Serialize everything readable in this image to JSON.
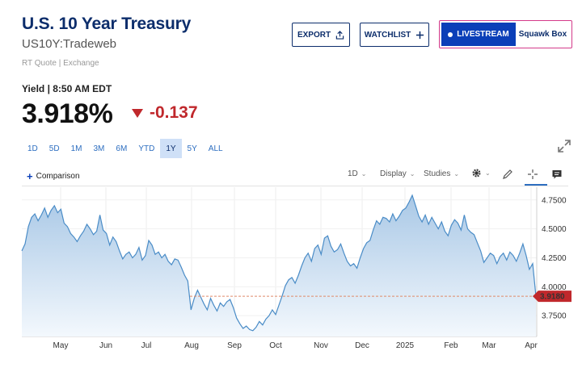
{
  "header": {
    "title": "U.S. 10 Year Treasury",
    "symbol": "US10Y:Tradeweb",
    "quote_source": "RT Quote | Exchange"
  },
  "actions": {
    "export_label": "EXPORT",
    "watchlist_label": "WATCHLIST",
    "livestream_label": "LIVESTREAM",
    "squawk_label": "Squawk Box"
  },
  "quote": {
    "yield_label": "Yield | 8:50 AM EDT",
    "price": "3.918%",
    "change": "-0.137"
  },
  "ranges": {
    "items": [
      "1D",
      "5D",
      "1M",
      "3M",
      "6M",
      "YTD",
      "1Y",
      "5Y",
      "ALL"
    ],
    "active": "1Y"
  },
  "toolbar": {
    "comparison_label": "Comparison",
    "interval_label": "1D",
    "display_label": "Display",
    "studies_label": "Studies"
  },
  "colors": {
    "line": "#4a8cc7",
    "fill_top": "#a9c8e6",
    "fill_bottom": "#f3f8fd",
    "down": "#c0282c",
    "brand": "#0c2d6b",
    "accent": "#2d6ec0"
  },
  "icons": {
    "export": "share-icon",
    "watchlist": "plus-icon",
    "expand": "expand-icon",
    "settings": "gear-icon",
    "draw": "pencil-icon",
    "crosshair": "crosshair-icon",
    "comment": "comment-icon"
  },
  "chart_data": {
    "type": "area",
    "title": "",
    "xlabel": "",
    "ylabel": "",
    "y_ticks": [
      3.75,
      4.0,
      4.25,
      4.5,
      4.75
    ],
    "y_tick_labels": [
      "3.7500",
      "4.0000",
      "4.2500",
      "4.5000",
      "4.7500"
    ],
    "x_tick_labels": [
      "May",
      "Jun",
      "Jul",
      "Aug",
      "Sep",
      "Oct",
      "Nov",
      "Dec",
      "2025",
      "Feb",
      "Mar",
      "Apr"
    ],
    "ylim": [
      3.57,
      4.86
    ],
    "last_value": 3.918,
    "last_value_label": "3.9180",
    "reference_line": 3.918,
    "grid": true,
    "series": [
      {
        "values": [
          4.31,
          4.37,
          4.52,
          4.6,
          4.63,
          4.57,
          4.62,
          4.68,
          4.6,
          4.66,
          4.7,
          4.64,
          4.67,
          4.55,
          4.52,
          4.46,
          4.43,
          4.39,
          4.44,
          4.48,
          4.54,
          4.5,
          4.45,
          4.48,
          4.62,
          4.49,
          4.46,
          4.36,
          4.43,
          4.39,
          4.31,
          4.24,
          4.28,
          4.3,
          4.25,
          4.28,
          4.34,
          4.23,
          4.27,
          4.4,
          4.36,
          4.28,
          4.3,
          4.25,
          4.28,
          4.22,
          4.19,
          4.24,
          4.23,
          4.17,
          4.1,
          4.05,
          3.8,
          3.9,
          3.97,
          3.91,
          3.85,
          3.8,
          3.9,
          3.84,
          3.79,
          3.86,
          3.83,
          3.87,
          3.89,
          3.82,
          3.73,
          3.68,
          3.64,
          3.66,
          3.63,
          3.62,
          3.65,
          3.7,
          3.67,
          3.72,
          3.75,
          3.8,
          3.76,
          3.84,
          3.92,
          4.01,
          4.06,
          4.08,
          4.03,
          4.1,
          4.18,
          4.25,
          4.29,
          4.22,
          4.33,
          4.36,
          4.28,
          4.42,
          4.44,
          4.35,
          4.3,
          4.32,
          4.37,
          4.29,
          4.22,
          4.18,
          4.2,
          4.16,
          4.25,
          4.33,
          4.38,
          4.4,
          4.49,
          4.57,
          4.54,
          4.6,
          4.59,
          4.56,
          4.63,
          4.57,
          4.61,
          4.66,
          4.68,
          4.73,
          4.79,
          4.7,
          4.61,
          4.56,
          4.62,
          4.54,
          4.6,
          4.55,
          4.5,
          4.56,
          4.48,
          4.44,
          4.53,
          4.58,
          4.55,
          4.49,
          4.62,
          4.5,
          4.47,
          4.45,
          4.38,
          4.31,
          4.21,
          4.25,
          4.29,
          4.27,
          4.2,
          4.26,
          4.29,
          4.23,
          4.3,
          4.27,
          4.22,
          4.29,
          4.37,
          4.27,
          4.15,
          4.2,
          3.918
        ]
      }
    ]
  }
}
